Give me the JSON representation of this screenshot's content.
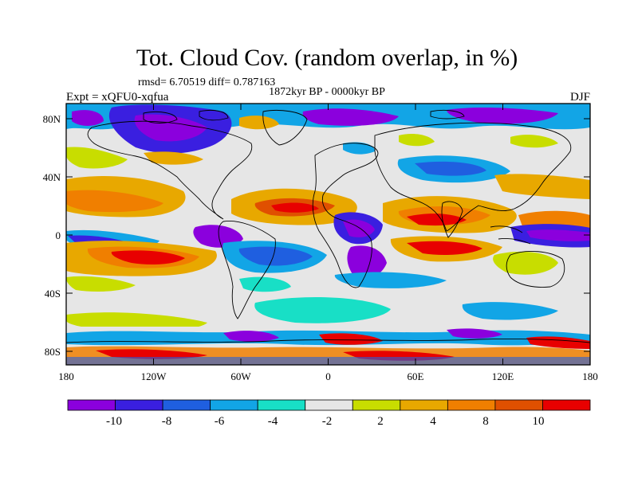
{
  "title": "Tot. Cloud Cov. (random overlap, in %)",
  "stats": "rmsd= 6.70519 diff= 0.787163",
  "period": "1872kyr BP - 0000kyr BP",
  "experiment": "Expt = xQFU0-xqfua",
  "season": "DJF",
  "lat_ticks": [
    "80N",
    "40N",
    "0",
    "40S",
    "80S"
  ],
  "lon_ticks": [
    "180",
    "120W",
    "60W",
    "0",
    "60E",
    "120E",
    "180"
  ],
  "colorbar": {
    "colors": [
      "#8b00dd",
      "#3a1fe0",
      "#1f5fe0",
      "#12a5e6",
      "#18dfc6",
      "#e6e6e6",
      "#c8dd00",
      "#e8a800",
      "#f07f00",
      "#e05000",
      "#e80000"
    ],
    "labels": [
      "-10",
      "-8",
      "-6",
      "-4",
      "-2",
      "2",
      "4",
      "8",
      "10"
    ]
  }
}
